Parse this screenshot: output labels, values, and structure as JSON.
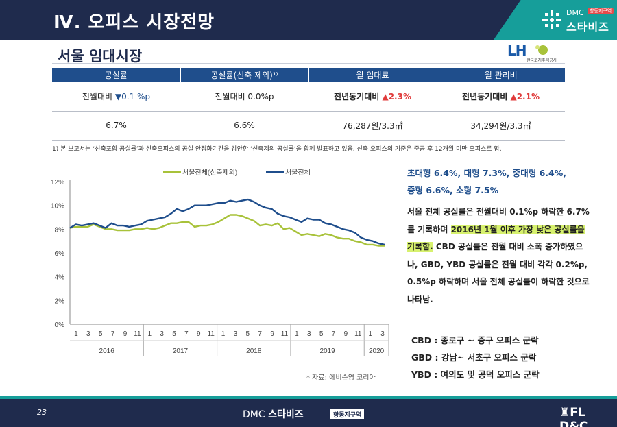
{
  "header": {
    "title": "Ⅳ. 오피스 시장전망",
    "logo_dmc": "DMC",
    "logo_name": "스타비즈",
    "logo_badge": "향동지구역"
  },
  "section": {
    "title": "서울 임대시장",
    "lh_logo": "LH",
    "lh_sub": "한국토지주택공사"
  },
  "table": {
    "headers": [
      "공실률",
      "공실률(신축 제외)¹⁾",
      "월 임대료",
      "월 관리비"
    ],
    "row1": [
      {
        "prefix": "전월대비 ",
        "symbol": "▼",
        "value": "0.1 %p",
        "dir": "down"
      },
      {
        "prefix": "전월대비 0.0%p",
        "symbol": "",
        "value": "",
        "dir": "none"
      },
      {
        "prefix": "전년동기대비 ",
        "symbol": "▲",
        "value": "2.3%",
        "dir": "up"
      },
      {
        "prefix": "전년동기대비 ",
        "symbol": "▲",
        "value": "2.1%",
        "dir": "up"
      }
    ],
    "row2": [
      "6.7%",
      "6.6%",
      "76,287원/3.3㎡",
      "34,294원/3.3㎡"
    ]
  },
  "footnote": "1) 본 보고서는 ‘신축포함 공실률’과 신축오피스의 공실 안정화기간을 감안한 ‘신축제외 공실률’을 함께 발표하고 있음. 신축 오피스의 기준은 준공 후 12개월 미만 오피스로 함.",
  "chart_data": {
    "type": "line",
    "title": "",
    "ylabel": "",
    "ylim": [
      0,
      12
    ],
    "yticks": [
      "0%",
      "2%",
      "4%",
      "6%",
      "8%",
      "10%",
      "12%"
    ],
    "month_ticks": [
      "1",
      "3",
      "5",
      "7",
      "9",
      "11",
      "1",
      "3",
      "5",
      "7",
      "9",
      "11",
      "1",
      "3",
      "5",
      "7",
      "9",
      "11",
      "1",
      "3",
      "5",
      "7",
      "9",
      "11",
      "1",
      "3"
    ],
    "year_labels": [
      "2016",
      "2017",
      "2018",
      "2019",
      "2020"
    ],
    "legend": [
      "서울전체(신축제외)",
      "서울전체"
    ],
    "series": [
      {
        "name": "서울전체(신축제외)",
        "color": "#a8c23a",
        "values": [
          8.1,
          8.2,
          8.2,
          8.2,
          8.4,
          8.2,
          8.0,
          8.0,
          7.9,
          7.9,
          7.9,
          8.0,
          8.0,
          8.1,
          8.0,
          8.1,
          8.3,
          8.5,
          8.5,
          8.6,
          8.6,
          8.2,
          8.3,
          8.3,
          8.4,
          8.6,
          8.9,
          9.2,
          9.2,
          9.1,
          8.9,
          8.7,
          8.3,
          8.4,
          8.3,
          8.5,
          8.0,
          8.1,
          7.8,
          7.5,
          7.6,
          7.5,
          7.4,
          7.6,
          7.5,
          7.3,
          7.2,
          7.2,
          7.0,
          6.9,
          6.7,
          6.7,
          6.6,
          6.6
        ]
      },
      {
        "name": "서울전체",
        "color": "#1f4e8c",
        "values": [
          8.1,
          8.4,
          8.3,
          8.4,
          8.5,
          8.3,
          8.1,
          8.5,
          8.3,
          8.3,
          8.2,
          8.3,
          8.4,
          8.7,
          8.8,
          8.9,
          9.0,
          9.3,
          9.7,
          9.5,
          9.7,
          10.0,
          10.0,
          10.0,
          10.1,
          10.2,
          10.2,
          10.4,
          10.3,
          10.4,
          10.5,
          10.3,
          10.0,
          9.8,
          9.7,
          9.3,
          9.1,
          9.0,
          8.8,
          8.6,
          8.9,
          8.8,
          8.8,
          8.5,
          8.4,
          8.2,
          8.0,
          7.9,
          7.7,
          7.3,
          7.1,
          7.0,
          6.8,
          6.7
        ]
      }
    ]
  },
  "summary": {
    "line1": "초대형 6.4%, 대형 7.3%, 중대형 6.4%,",
    "line2": "중형 6.6%, 소형 7.5%"
  },
  "body": {
    "part1": "서울 전체 공실률은 전월대비 0.1%p 하락한 6.7%를 기록하며 ",
    "highlight": "2016년 1월 이후 가장 낮은 공실률을 기록함.",
    "part2": " CBD 공실률은 전월 대비 소폭 증가하였으나, GBD, YBD 공실률은 전월 대비 각각 0.2%p, 0.5%p 하락하며 서울 전체 공실률이 하락한 것으로 나타남."
  },
  "districts": [
    "CBD : 종로구 ~ 중구 오피스 군락",
    "GBD : 강남~ 서초구 오피스 군락",
    "YBD : 여의도 및 공덕 오피스 군락"
  ],
  "source": "* 자료: 에비슨영 코리아",
  "footer": {
    "page": "23",
    "dmc": "DMC ",
    "brand": "스타비즈",
    "badge": "향동지구역",
    "company": "FL D&C"
  },
  "colors": {
    "navy": "#1f2b4d",
    "teal": "#169e9a",
    "blue": "#1f4e8c",
    "green": "#a8c23a",
    "red": "#e03a3a",
    "highlight": "#d7f16e"
  }
}
